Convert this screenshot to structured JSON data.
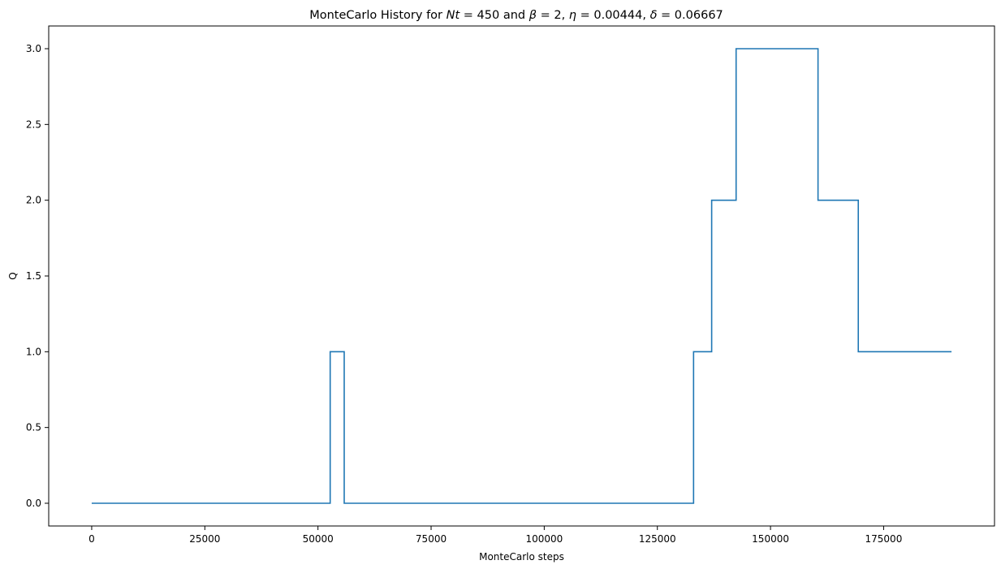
{
  "chart_data": {
    "type": "line",
    "step": true,
    "title": {
      "prefix": "MonteCarlo History for ",
      "nt_var": "Nt",
      "nt_value": " = 450 and  ",
      "beta_var": "β",
      "beta_value": " = 2, ",
      "eta_var": "η",
      "eta_value": " = 0.00444, ",
      "delta_var": "δ",
      "delta_value": " = 0.06667"
    },
    "xlabel": "MonteCarlo steps",
    "ylabel": "Q",
    "xlim": [
      -9500,
      199500
    ],
    "ylim": [
      -0.15,
      3.15
    ],
    "xticks": [
      0,
      25000,
      50000,
      75000,
      100000,
      125000,
      150000,
      175000
    ],
    "xtick_labels": [
      "0",
      "25000",
      "50000",
      "75000",
      "100000",
      "125000",
      "150000",
      "175000"
    ],
    "yticks": [
      0.0,
      0.5,
      1.0,
      1.5,
      2.0,
      2.5,
      3.0
    ],
    "ytick_labels": [
      "0.0",
      "0.5",
      "1.0",
      "1.5",
      "2.0",
      "2.5",
      "3.0"
    ],
    "grid": false,
    "series": [
      {
        "color": "#1f77b4",
        "x": [
          0,
          52700,
          52700,
          55800,
          55800,
          133000,
          133000,
          137000,
          137000,
          142400,
          142400,
          160500,
          160500,
          169400,
          169400,
          190000
        ],
        "y": [
          0,
          0,
          1,
          1,
          0,
          0,
          1,
          1,
          2,
          2,
          3,
          3,
          2,
          2,
          1,
          1
        ]
      }
    ]
  }
}
